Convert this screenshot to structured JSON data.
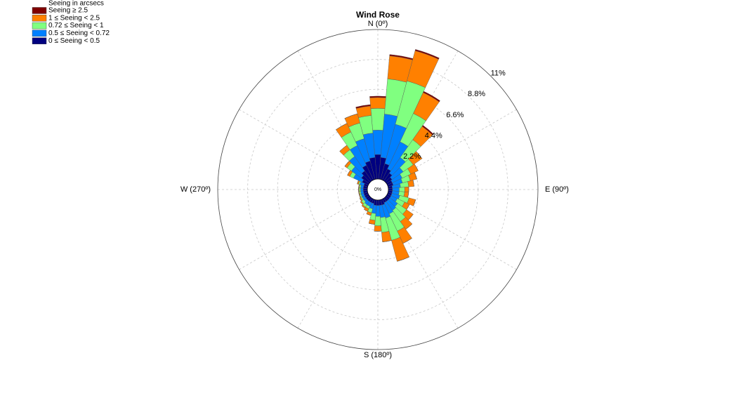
{
  "chart_data": {
    "type": "windrose",
    "title": "Wind Rose",
    "legend_title": "Seeing in arcsecs",
    "legend": "top-left",
    "directions": [
      0,
      10,
      20,
      30,
      40,
      50,
      60,
      70,
      80,
      90,
      100,
      110,
      120,
      130,
      140,
      150,
      160,
      170,
      180,
      190,
      200,
      210,
      220,
      230,
      240,
      250,
      260,
      270,
      280,
      290,
      300,
      310,
      320,
      330,
      340,
      350
    ],
    "rlim": [
      0,
      11
    ],
    "rticks": [
      {
        "value": 0,
        "label": "0%"
      },
      {
        "value": 2.2,
        "label": "2.2%"
      },
      {
        "value": 4.4,
        "label": "4.4%"
      },
      {
        "value": 6.6,
        "label": "6.6%"
      },
      {
        "value": 8.8,
        "label": "8.8%"
      },
      {
        "value": 11,
        "label": "11%"
      }
    ],
    "angle_grid": [
      0,
      30,
      60,
      90,
      120,
      150,
      180,
      210,
      240,
      270,
      300,
      330
    ],
    "angle_labels": [
      {
        "value": 0,
        "label": "N (0º)"
      },
      {
        "value": 90,
        "label": "E (90º)"
      },
      {
        "value": 180,
        "label": "S (180º)"
      },
      {
        "value": 270,
        "label": "W (270º)"
      }
    ],
    "grid": true,
    "series": [
      {
        "name": "Seeing ≥ 2.5",
        "color": "#7f0000",
        "values": [
          0.1,
          0.1,
          0.1,
          0.1,
          0.1,
          0,
          0,
          0,
          0,
          0,
          0,
          0,
          0,
          0,
          0,
          0,
          0,
          0,
          0,
          0,
          0,
          0,
          0,
          0,
          0,
          0,
          0,
          0,
          0,
          0,
          0,
          0,
          0,
          0,
          0,
          0.1
        ]
      },
      {
        "name": "1 ≤ Seeing < 2.5",
        "color": "#ff8000",
        "values": [
          0.8,
          1.7,
          2.3,
          1.7,
          1.2,
          0.8,
          0.6,
          0.5,
          0.4,
          0.3,
          0.3,
          0.5,
          0.4,
          0.6,
          0.7,
          1.0,
          1.6,
          0.7,
          0.4,
          0.3,
          0.2,
          0.2,
          0.1,
          0.1,
          0.1,
          0.05,
          0.05,
          0.05,
          0.05,
          0.1,
          0.2,
          0.2,
          0.4,
          0.7,
          0.7,
          0.7
        ]
      },
      {
        "name": "0.72 ≤ Seeing < 1",
        "color": "#80ff80",
        "values": [
          1.6,
          2.6,
          3.3,
          2.3,
          1.6,
          0.9,
          0.7,
          0.6,
          0.6,
          0.4,
          0.4,
          0.7,
          0.6,
          0.8,
          1.0,
          1.4,
          1.7,
          1.1,
          0.7,
          0.5,
          0.3,
          0.2,
          0.2,
          0.2,
          0.1,
          0.1,
          0.1,
          0.1,
          0.1,
          0.1,
          0.3,
          0.4,
          0.6,
          1.1,
          1.2,
          1.3
        ]
      },
      {
        "name": "0.5 ≤ Seeing < 0.72",
        "color": "#0080ff",
        "values": [
          1.8,
          3.2,
          3.0,
          2.2,
          1.4,
          1.0,
          0.8,
          0.7,
          0.6,
          0.5,
          0.5,
          0.6,
          0.5,
          0.7,
          0.8,
          0.9,
          1.0,
          0.9,
          0.8,
          0.6,
          0.4,
          0.3,
          0.3,
          0.2,
          0.2,
          0.2,
          0.2,
          0.2,
          0.2,
          0.3,
          0.7,
          0.9,
          1.3,
          1.6,
          1.7,
          1.8
        ]
      },
      {
        "name": "0 ≤ Seeing < 0.5",
        "color": "#000080",
        "values": [
          1.8,
          1.6,
          1.2,
          0.9,
          0.7,
          0.5,
          0.4,
          0.4,
          0.3,
          0.3,
          0.3,
          0.3,
          0.3,
          0.3,
          0.3,
          0.3,
          0.4,
          0.4,
          0.4,
          0.4,
          0.3,
          0.3,
          0.3,
          0.3,
          0.3,
          0.3,
          0.3,
          0.3,
          0.3,
          0.3,
          0.5,
          0.7,
          0.9,
          1.2,
          1.4,
          1.6
        ]
      }
    ]
  }
}
